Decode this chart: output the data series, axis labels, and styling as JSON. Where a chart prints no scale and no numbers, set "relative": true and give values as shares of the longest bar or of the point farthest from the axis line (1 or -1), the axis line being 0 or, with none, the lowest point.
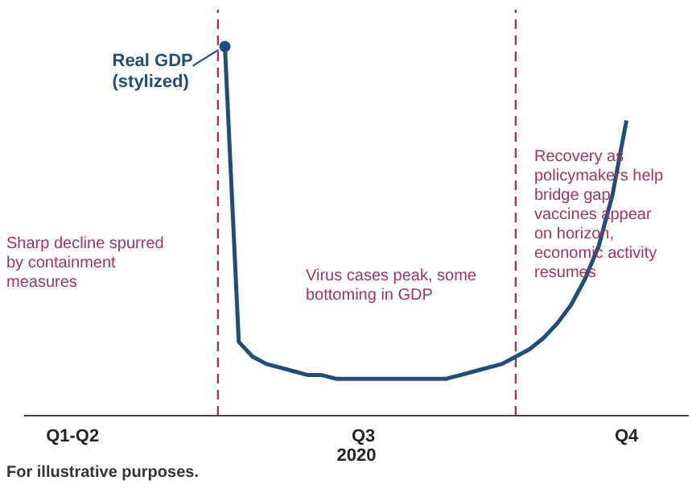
{
  "chart_data": {
    "type": "line",
    "relative": true,
    "xlabel": "2020",
    "categories": [
      null,
      null,
      null,
      "Q1-Q2",
      null,
      null,
      null,
      null,
      null,
      null,
      null,
      null,
      null,
      null,
      null,
      null,
      null,
      null,
      null,
      null,
      null,
      null,
      null,
      null,
      "Q3",
      null,
      null,
      null,
      null,
      null,
      null,
      null,
      null,
      null,
      null,
      null,
      null,
      null,
      null,
      null,
      null,
      null,
      null,
      "Q4",
      null,
      null,
      null,
      null
    ],
    "series": [
      {
        "name": "Real GDP (stylized)",
        "color": "#1f4e79",
        "values": [
          null,
          null,
          null,
          null,
          null,
          null,
          null,
          null,
          null,
          null,
          null,
          null,
          null,
          null,
          1.0,
          0.2,
          0.16,
          0.14,
          0.13,
          0.12,
          0.11,
          0.11,
          0.1,
          0.1,
          0.1,
          0.1,
          0.1,
          0.1,
          0.1,
          0.1,
          0.1,
          0.11,
          0.12,
          0.13,
          0.14,
          0.16,
          0.18,
          0.21,
          0.25,
          0.3,
          0.37,
          0.46,
          0.6,
          0.8,
          null,
          null,
          null,
          null
        ]
      }
    ],
    "tick_labels": "x",
    "annotations": [
      "Sharp decline spurred by containment measures",
      "Virus cases peak, some bottoming in GDP",
      "Recovery as policymakers help bridge gap, vaccines appear on horizon, economic activity resumes",
      "For illustrative purposes."
    ]
  }
}
